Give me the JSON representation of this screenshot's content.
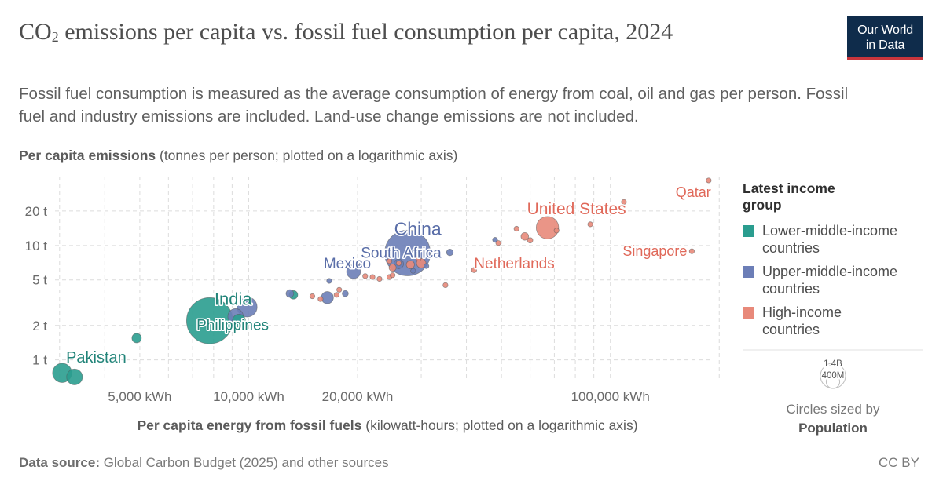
{
  "header": {
    "title_prefix": "CO",
    "title_sub": "2",
    "title_rest": " emissions per capita vs. fossil fuel consumption per capita, 2024",
    "subtitle": "Fossil fuel consumption is measured as the average consumption of energy from coal, oil and gas per person. Fossil fuel and industry emissions are included. Land-use change emissions are not included.",
    "logo_line1": "Our World",
    "logo_line2": "in Data"
  },
  "footer": {
    "source_label": "Data source:",
    "source_text": " Global Carbon Budget (2025) and other sources",
    "license": "CC BY"
  },
  "chart_data": {
    "type": "scatter",
    "y_title_bold": "Per capita emissions",
    "y_title_rest": " (tonnes per person; plotted on a logarithmic axis)",
    "x_title_bold": "Per capita energy from fossil fuels",
    "x_title_rest": " (kilowatt-hours; plotted on a logarithmic axis)",
    "x_scale": "log",
    "y_scale": "log",
    "xlim": [
      2800,
      190000
    ],
    "ylim": [
      0.66,
      40
    ],
    "grid": true,
    "x_ticks": [
      {
        "value": 5000,
        "label": "5,000 kWh"
      },
      {
        "value": 10000,
        "label": "10,000 kWh"
      },
      {
        "value": 20000,
        "label": "20,000 kWh"
      },
      {
        "value": 100000,
        "label": "100,000 kWh"
      }
    ],
    "x_minor_gridlines": [
      3000,
      4000,
      6000,
      7000,
      8000,
      9000,
      30000,
      40000,
      50000,
      60000,
      70000,
      80000,
      90000,
      200000
    ],
    "y_ticks": [
      {
        "value": 1,
        "label": "1 t"
      },
      {
        "value": 2,
        "label": "2 t"
      },
      {
        "value": 5,
        "label": "5 t"
      },
      {
        "value": 10,
        "label": "10 t"
      },
      {
        "value": 20,
        "label": "20 t"
      }
    ],
    "legend": {
      "title": "Latest income group",
      "placement": "right",
      "items": [
        {
          "label": "Lower-middle-income countries",
          "color": "#2a9d8f"
        },
        {
          "label": "Upper-middle-income countries",
          "color": "#6c7eb7"
        },
        {
          "label": "High-income countries",
          "color": "#e8897a"
        }
      ]
    },
    "size_legend": {
      "label_large": "1.4B",
      "label_small": "400M",
      "caption_line1": "Circles sized by",
      "caption_bold": "Population",
      "values": [
        1400000000,
        400000000
      ]
    },
    "group_colors": {
      "lower_middle": "#2a9d8f",
      "upper_middle": "#6c7eb7",
      "high": "#e8897a"
    },
    "label_colors": {
      "lower_middle": "#218479",
      "upper_middle": "#5a6ea8",
      "high": "#e0695a"
    },
    "points": [
      {
        "label": "Pakistan",
        "group": "lower_middle",
        "x": 3050,
        "y": 0.77,
        "pop": 250000000
      },
      {
        "label": "",
        "group": "lower_middle",
        "x": 3300,
        "y": 0.71,
        "pop": 170000000
      },
      {
        "label": "",
        "group": "lower_middle",
        "x": 4900,
        "y": 1.55,
        "pop": 60000000
      },
      {
        "label": "India",
        "group": "lower_middle",
        "x": 7800,
        "y": 2.2,
        "pop": 1440000000
      },
      {
        "label": "Philippines",
        "group": "lower_middle",
        "x": 9400,
        "y": 2.2,
        "pop": 115000000
      },
      {
        "label": "",
        "group": "lower_middle",
        "x": 13300,
        "y": 3.7,
        "pop": 50000000
      },
      {
        "label": "",
        "group": "upper_middle",
        "x": 9200,
        "y": 2.4,
        "pop": 160000000
      },
      {
        "label": "",
        "group": "upper_middle",
        "x": 9900,
        "y": 2.9,
        "pop": 270000000
      },
      {
        "label": "",
        "group": "upper_middle",
        "x": 13000,
        "y": 3.8,
        "pop": 40000000
      },
      {
        "label": "",
        "group": "upper_middle",
        "x": 16500,
        "y": 3.5,
        "pop": 100000000
      },
      {
        "label": "",
        "group": "upper_middle",
        "x": 16700,
        "y": 4.9,
        "pop": 10000000
      },
      {
        "label": "",
        "group": "upper_middle",
        "x": 18500,
        "y": 3.8,
        "pop": 25000000
      },
      {
        "label": "Mexico",
        "group": "upper_middle",
        "x": 19500,
        "y": 5.9,
        "pop": 130000000
      },
      {
        "label": "",
        "group": "upper_middle",
        "x": 20500,
        "y": 6.7,
        "pop": 20000000
      },
      {
        "label": "South Africa",
        "group": "upper_middle",
        "x": 26000,
        "y": 6.9,
        "pop": 62000000
      },
      {
        "label": "China",
        "group": "upper_middle",
        "x": 27500,
        "y": 8.6,
        "pop": 1410000000
      },
      {
        "label": "",
        "group": "upper_middle",
        "x": 36000,
        "y": 8.7,
        "pop": 30000000
      },
      {
        "label": "",
        "group": "upper_middle",
        "x": 31000,
        "y": 6.6,
        "pop": 6000000
      },
      {
        "label": "",
        "group": "upper_middle",
        "x": 28500,
        "y": 6.0,
        "pop": 8000000
      },
      {
        "label": "",
        "group": "upper_middle",
        "x": 48000,
        "y": 11.2,
        "pop": 5000000
      },
      {
        "label": "",
        "group": "high",
        "x": 15000,
        "y": 3.6,
        "pop": 8000000
      },
      {
        "label": "",
        "group": "high",
        "x": 15800,
        "y": 3.4,
        "pop": 6000000
      },
      {
        "label": "",
        "group": "high",
        "x": 17500,
        "y": 3.7,
        "pop": 10000000
      },
      {
        "label": "",
        "group": "high",
        "x": 17800,
        "y": 4.1,
        "pop": 5000000
      },
      {
        "label": "",
        "group": "high",
        "x": 21000,
        "y": 5.4,
        "pop": 6000000
      },
      {
        "label": "",
        "group": "high",
        "x": 22000,
        "y": 5.3,
        "pop": 5000000
      },
      {
        "label": "",
        "group": "high",
        "x": 23000,
        "y": 5.1,
        "pop": 5000000
      },
      {
        "label": "",
        "group": "high",
        "x": 24500,
        "y": 5.3,
        "pop": 5000000
      },
      {
        "label": "",
        "group": "high",
        "x": 25000,
        "y": 6.4,
        "pop": 35000000
      },
      {
        "label": "",
        "group": "high",
        "x": 26000,
        "y": 7.0,
        "pop": 10000000
      },
      {
        "label": "",
        "group": "high",
        "x": 28000,
        "y": 6.8,
        "pop": 45000000
      },
      {
        "label": "",
        "group": "high",
        "x": 30000,
        "y": 7.0,
        "pop": 60000000
      },
      {
        "label": "",
        "group": "high",
        "x": 29500,
        "y": 7.7,
        "pop": 5000000
      },
      {
        "label": "",
        "group": "high",
        "x": 24500,
        "y": 7.3,
        "pop": 5000000
      },
      {
        "label": "",
        "group": "high",
        "x": 25000,
        "y": 5.5,
        "pop": 5000000
      },
      {
        "label": "",
        "group": "high",
        "x": 35000,
        "y": 4.5,
        "pop": 5000000
      },
      {
        "label": "Netherlands",
        "group": "high",
        "x": 42000,
        "y": 6.1,
        "pop": 18000000
      },
      {
        "label": "",
        "group": "high",
        "x": 49000,
        "y": 10.5,
        "pop": 5000000
      },
      {
        "label": "",
        "group": "high",
        "x": 55000,
        "y": 14.0,
        "pop": 5000000
      },
      {
        "label": "",
        "group": "high",
        "x": 58000,
        "y": 12.0,
        "pop": 40000000
      },
      {
        "label": "",
        "group": "high",
        "x": 60000,
        "y": 11.1,
        "pop": 20000000
      },
      {
        "label": "United States",
        "group": "high",
        "x": 67000,
        "y": 14.3,
        "pop": 340000000
      },
      {
        "label": "",
        "group": "high",
        "x": 71000,
        "y": 13.5,
        "pop": 10000000
      },
      {
        "label": "",
        "group": "high",
        "x": 88000,
        "y": 15.3,
        "pop": 5000000
      },
      {
        "label": "",
        "group": "high",
        "x": 109000,
        "y": 24.0,
        "pop": 5000000
      },
      {
        "label": "Singapore",
        "group": "high",
        "x": 168000,
        "y": 8.9,
        "pop": 6000000
      },
      {
        "label": "Qatar",
        "group": "high",
        "x": 187000,
        "y": 37.0,
        "pop": 3000000
      }
    ]
  }
}
